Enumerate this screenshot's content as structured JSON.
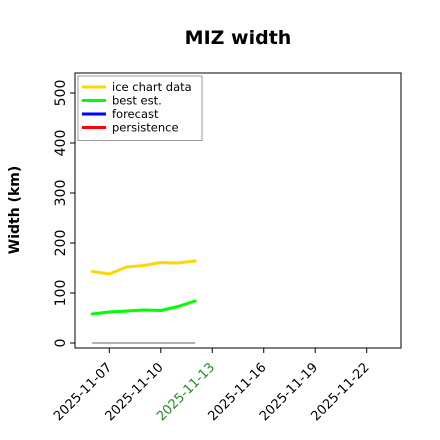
{
  "chart_data": {
    "type": "line",
    "title": "MIZ width",
    "xlabel": "",
    "ylabel": "Width (km)",
    "ylim": [
      -10,
      540
    ],
    "xlim": [
      "2025-11-05",
      "2025-11-24"
    ],
    "yticks": [
      0,
      100,
      200,
      300,
      400,
      500
    ],
    "xticks": [
      {
        "date": "2025-11-07",
        "label": "2025-11-07",
        "color": "#000000"
      },
      {
        "date": "2025-11-10",
        "label": "2025-11-10",
        "color": "#000000"
      },
      {
        "date": "2025-11-13",
        "label": "2025-11-13",
        "color": "#228b22"
      },
      {
        "date": "2025-11-16",
        "label": "2025-11-16",
        "color": "#000000"
      },
      {
        "date": "2025-11-19",
        "label": "2025-11-19",
        "color": "#000000"
      },
      {
        "date": "2025-11-22",
        "label": "2025-11-22",
        "color": "#000000"
      }
    ],
    "legend_position": "top-left",
    "grid": false,
    "series": [
      {
        "name": "ice chart data",
        "color": "#ffd700",
        "points": [
          [
            "2025-11-06",
            143
          ],
          [
            "2025-11-07",
            138
          ],
          [
            "2025-11-08",
            152
          ],
          [
            "2025-11-09",
            155
          ],
          [
            "2025-11-10",
            161
          ],
          [
            "2025-11-11",
            160
          ],
          [
            "2025-11-12",
            164
          ]
        ]
      },
      {
        "name": "best est.",
        "color": "#00ff00",
        "points": [
          [
            "2025-11-06",
            58
          ],
          [
            "2025-11-07",
            62
          ],
          [
            "2025-11-08",
            64
          ],
          [
            "2025-11-09",
            66
          ],
          [
            "2025-11-10",
            65
          ],
          [
            "2025-11-11",
            73
          ],
          [
            "2025-11-12",
            84
          ]
        ]
      },
      {
        "name": "forecast",
        "color": "#0000ff",
        "points": []
      },
      {
        "name": "persistence",
        "color": "#ff0000",
        "points": []
      }
    ],
    "reference_line": {
      "color": "#808080",
      "y": 0,
      "x_start": "2025-11-06",
      "x_end": "2025-11-12"
    }
  }
}
